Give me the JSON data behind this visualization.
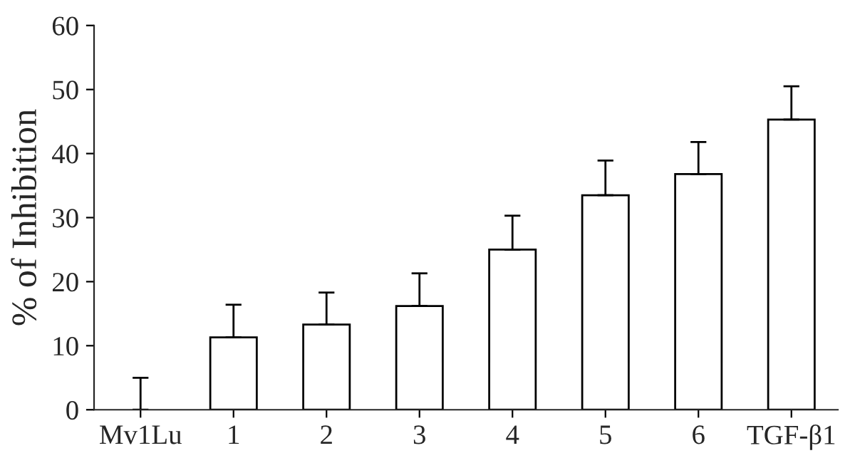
{
  "chart_data": {
    "type": "bar",
    "ylabel": "% of Inhibition",
    "categories": [
      "Mv1Lu",
      "1",
      "2",
      "3",
      "4",
      "5",
      "6",
      "TGF-β1"
    ],
    "values": [
      0,
      11.3,
      13.3,
      16.2,
      25,
      33.5,
      36.8,
      45.3
    ],
    "errors": [
      [
        0,
        5
      ],
      [
        11.3,
        16.4
      ],
      [
        13.3,
        18.3
      ],
      [
        16.2,
        21.3
      ],
      [
        25,
        30.3
      ],
      [
        33.5,
        38.9
      ],
      [
        36.8,
        41.8
      ],
      [
        45.3,
        50.5
      ]
    ],
    "color": "#ffffff",
    "ylim": [
      0,
      60
    ],
    "yticks": [
      0,
      10,
      20,
      30,
      40,
      50,
      60
    ],
    "grid": false
  }
}
